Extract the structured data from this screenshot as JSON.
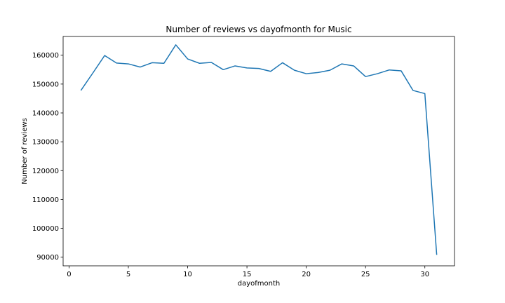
{
  "chart_data": {
    "type": "line",
    "title": "Number of reviews vs dayofmonth for Music",
    "xlabel": "dayofmonth",
    "ylabel": "Number of reviews",
    "xlim": [
      -0.5,
      32.5
    ],
    "ylim": [
      87000,
      166500
    ],
    "xticks": [
      0,
      5,
      10,
      15,
      20,
      25,
      30
    ],
    "yticks": [
      90000,
      100000,
      110000,
      120000,
      130000,
      140000,
      150000,
      160000
    ],
    "grid": false,
    "line_color": "#1f77b4",
    "series": [
      {
        "x": [
          1,
          2,
          3,
          4,
          5,
          6,
          7,
          8,
          9,
          10,
          11,
          12,
          13,
          14,
          15,
          16,
          17,
          18,
          19,
          20,
          21,
          22,
          23,
          24,
          25,
          26,
          27,
          28,
          29,
          30,
          31
        ],
        "values": [
          147800,
          153800,
          159900,
          157300,
          157000,
          155900,
          157400,
          157200,
          163600,
          158700,
          157200,
          157500,
          155000,
          156300,
          155600,
          155400,
          154400,
          157400,
          154800,
          153600,
          154000,
          154800,
          157000,
          156300,
          152600,
          153600,
          154900,
          154600,
          147800,
          146700,
          90800
        ]
      }
    ]
  }
}
